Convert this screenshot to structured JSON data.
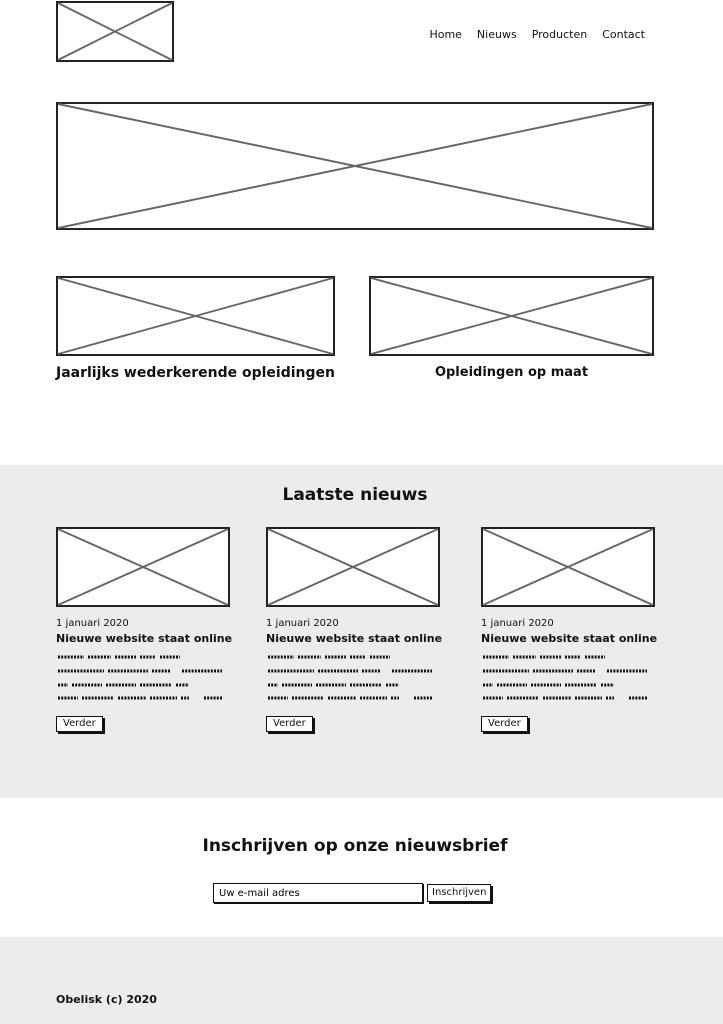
{
  "nav": {
    "items": [
      "Home",
      "Nieuws",
      "Producten",
      "Contact"
    ]
  },
  "features": [
    {
      "title": "Jaarlijks wederkerende opleidingen"
    },
    {
      "title": "Opleidingen op maat"
    }
  ],
  "news": {
    "heading": "Laatste nieuws",
    "cards": [
      {
        "date": "1 januari 2020",
        "title": "Nieuwe website staat online",
        "button": "Verder"
      },
      {
        "date": "1 januari 2020",
        "title": "Nieuwe website staat online",
        "button": "Verder"
      },
      {
        "date": "1 januari 2020",
        "title": "Nieuwe website staat online",
        "button": "Verder"
      }
    ]
  },
  "newsletter": {
    "heading": "Inschrijven op onze nieuwsbrief",
    "input_value": "Uw e-mail adres",
    "button": "Inschrijven"
  },
  "footer": {
    "copyright": "Obelisk (c) 2020"
  }
}
